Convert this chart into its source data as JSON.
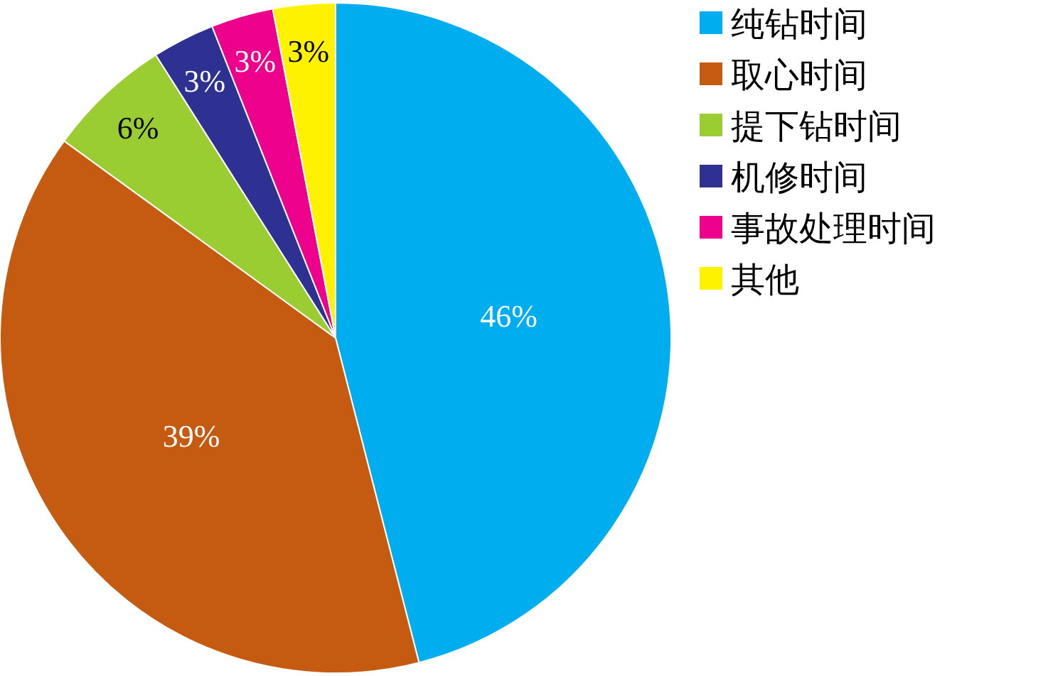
{
  "chart_data": {
    "type": "pie",
    "categories": [
      "纯钻时间",
      "取心时间",
      "提下钻时间",
      "机修时间",
      "事故处理时间",
      "其他"
    ],
    "values": [
      46,
      39,
      6,
      3,
      3,
      3
    ],
    "colors": [
      "#00aeef",
      "#c55a11",
      "#9acd32",
      "#2e3192",
      "#ec008c",
      "#fff200"
    ],
    "value_labels": [
      "46%",
      "39%",
      "6%",
      "3%",
      "3%",
      "3%"
    ],
    "legend": "right"
  }
}
